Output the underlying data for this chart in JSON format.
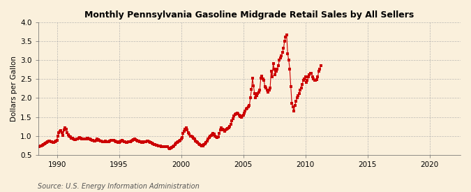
{
  "title": "Monthly Pennsylvania Gasoline Midgrade Retail Sales by All Sellers",
  "ylabel": "Dollars per Gallon",
  "source": "Source: U.S. Energy Information Administration",
  "background_color": "#faf0dc",
  "line_color": "#cc0000",
  "marker_color": "#cc0000",
  "xlim": [
    1988.5,
    2022.5
  ],
  "ylim": [
    0.5,
    4.0
  ],
  "yticks": [
    0.5,
    1.0,
    1.5,
    2.0,
    2.5,
    3.0,
    3.5,
    4.0
  ],
  "ytick_labels": [
    "0.5",
    "1.0",
    "1.5",
    "2.0",
    "2.5",
    "3.0",
    "3.5",
    "4.0"
  ],
  "xticks": [
    1990,
    1995,
    2000,
    2005,
    2010,
    2015,
    2020
  ],
  "data": [
    [
      1988.583,
      0.71
    ],
    [
      1988.667,
      0.73
    ],
    [
      1988.75,
      0.74
    ],
    [
      1988.833,
      0.76
    ],
    [
      1988.917,
      0.78
    ],
    [
      1989.0,
      0.79
    ],
    [
      1989.083,
      0.8
    ],
    [
      1989.167,
      0.82
    ],
    [
      1989.25,
      0.84
    ],
    [
      1989.333,
      0.87
    ],
    [
      1989.417,
      0.87
    ],
    [
      1989.5,
      0.85
    ],
    [
      1989.583,
      0.84
    ],
    [
      1989.667,
      0.83
    ],
    [
      1989.75,
      0.83
    ],
    [
      1989.833,
      0.84
    ],
    [
      1989.917,
      0.86
    ],
    [
      1990.0,
      0.89
    ],
    [
      1990.083,
      1.0
    ],
    [
      1990.167,
      1.08
    ],
    [
      1990.25,
      1.12
    ],
    [
      1990.333,
      1.14
    ],
    [
      1990.417,
      1.08
    ],
    [
      1990.5,
      1.02
    ],
    [
      1990.583,
      1.16
    ],
    [
      1990.667,
      1.22
    ],
    [
      1990.75,
      1.18
    ],
    [
      1990.833,
      1.09
    ],
    [
      1990.917,
      1.03
    ],
    [
      1991.0,
      0.99
    ],
    [
      1991.083,
      0.97
    ],
    [
      1991.167,
      0.94
    ],
    [
      1991.25,
      0.93
    ],
    [
      1991.333,
      0.91
    ],
    [
      1991.417,
      0.9
    ],
    [
      1991.5,
      0.9
    ],
    [
      1991.583,
      0.92
    ],
    [
      1991.667,
      0.92
    ],
    [
      1991.75,
      0.94
    ],
    [
      1991.833,
      0.95
    ],
    [
      1991.917,
      0.93
    ],
    [
      1992.0,
      0.92
    ],
    [
      1992.083,
      0.91
    ],
    [
      1992.167,
      0.91
    ],
    [
      1992.25,
      0.92
    ],
    [
      1992.333,
      0.92
    ],
    [
      1992.417,
      0.93
    ],
    [
      1992.5,
      0.94
    ],
    [
      1992.583,
      0.92
    ],
    [
      1992.667,
      0.91
    ],
    [
      1992.75,
      0.9
    ],
    [
      1992.833,
      0.89
    ],
    [
      1992.917,
      0.88
    ],
    [
      1993.0,
      0.87
    ],
    [
      1993.083,
      0.87
    ],
    [
      1993.167,
      0.89
    ],
    [
      1993.25,
      0.91
    ],
    [
      1993.333,
      0.9
    ],
    [
      1993.417,
      0.88
    ],
    [
      1993.5,
      0.87
    ],
    [
      1993.583,
      0.86
    ],
    [
      1993.667,
      0.85
    ],
    [
      1993.75,
      0.84
    ],
    [
      1993.833,
      0.85
    ],
    [
      1993.917,
      0.86
    ],
    [
      1994.0,
      0.85
    ],
    [
      1994.083,
      0.84
    ],
    [
      1994.167,
      0.85
    ],
    [
      1994.25,
      0.87
    ],
    [
      1994.333,
      0.88
    ],
    [
      1994.417,
      0.89
    ],
    [
      1994.5,
      0.89
    ],
    [
      1994.583,
      0.88
    ],
    [
      1994.667,
      0.87
    ],
    [
      1994.75,
      0.85
    ],
    [
      1994.833,
      0.84
    ],
    [
      1994.917,
      0.83
    ],
    [
      1995.0,
      0.83
    ],
    [
      1995.083,
      0.84
    ],
    [
      1995.167,
      0.86
    ],
    [
      1995.25,
      0.88
    ],
    [
      1995.333,
      0.87
    ],
    [
      1995.417,
      0.85
    ],
    [
      1995.5,
      0.84
    ],
    [
      1995.583,
      0.83
    ],
    [
      1995.667,
      0.83
    ],
    [
      1995.75,
      0.84
    ],
    [
      1995.833,
      0.84
    ],
    [
      1995.917,
      0.85
    ],
    [
      1996.0,
      0.86
    ],
    [
      1996.083,
      0.88
    ],
    [
      1996.167,
      0.9
    ],
    [
      1996.25,
      0.92
    ],
    [
      1996.333,
      0.9
    ],
    [
      1996.417,
      0.88
    ],
    [
      1996.5,
      0.87
    ],
    [
      1996.583,
      0.86
    ],
    [
      1996.667,
      0.85
    ],
    [
      1996.75,
      0.84
    ],
    [
      1996.833,
      0.83
    ],
    [
      1996.917,
      0.83
    ],
    [
      1997.0,
      0.84
    ],
    [
      1997.083,
      0.84
    ],
    [
      1997.167,
      0.85
    ],
    [
      1997.25,
      0.87
    ],
    [
      1997.333,
      0.86
    ],
    [
      1997.417,
      0.84
    ],
    [
      1997.5,
      0.83
    ],
    [
      1997.583,
      0.82
    ],
    [
      1997.667,
      0.8
    ],
    [
      1997.75,
      0.79
    ],
    [
      1997.833,
      0.78
    ],
    [
      1997.917,
      0.77
    ],
    [
      1998.0,
      0.76
    ],
    [
      1998.083,
      0.75
    ],
    [
      1998.167,
      0.74
    ],
    [
      1998.25,
      0.74
    ],
    [
      1998.333,
      0.73
    ],
    [
      1998.417,
      0.72
    ],
    [
      1998.5,
      0.72
    ],
    [
      1998.583,
      0.71
    ],
    [
      1998.667,
      0.71
    ],
    [
      1998.75,
      0.72
    ],
    [
      1998.833,
      0.72
    ],
    [
      1998.917,
      0.71
    ],
    [
      1999.0,
      0.68
    ],
    [
      1999.083,
      0.67
    ],
    [
      1999.167,
      0.68
    ],
    [
      1999.25,
      0.7
    ],
    [
      1999.333,
      0.72
    ],
    [
      1999.417,
      0.74
    ],
    [
      1999.5,
      0.77
    ],
    [
      1999.583,
      0.8
    ],
    [
      1999.667,
      0.82
    ],
    [
      1999.75,
      0.84
    ],
    [
      1999.833,
      0.86
    ],
    [
      1999.917,
      0.88
    ],
    [
      2000.0,
      0.91
    ],
    [
      2000.083,
      0.96
    ],
    [
      2000.167,
      1.06
    ],
    [
      2000.25,
      1.12
    ],
    [
      2000.333,
      1.17
    ],
    [
      2000.417,
      1.21
    ],
    [
      2000.5,
      1.16
    ],
    [
      2000.583,
      1.09
    ],
    [
      2000.667,
      1.04
    ],
    [
      2000.75,
      1.0
    ],
    [
      2000.833,
      1.0
    ],
    [
      2000.917,
      0.97
    ],
    [
      2001.0,
      0.94
    ],
    [
      2001.083,
      0.91
    ],
    [
      2001.167,
      0.87
    ],
    [
      2001.25,
      0.84
    ],
    [
      2001.333,
      0.82
    ],
    [
      2001.417,
      0.79
    ],
    [
      2001.5,
      0.77
    ],
    [
      2001.583,
      0.75
    ],
    [
      2001.667,
      0.74
    ],
    [
      2001.75,
      0.74
    ],
    [
      2001.833,
      0.77
    ],
    [
      2001.917,
      0.79
    ],
    [
      2002.0,
      0.82
    ],
    [
      2002.083,
      0.86
    ],
    [
      2002.167,
      0.91
    ],
    [
      2002.25,
      0.96
    ],
    [
      2002.333,
      0.99
    ],
    [
      2002.417,
      1.01
    ],
    [
      2002.5,
      1.03
    ],
    [
      2002.583,
      1.06
    ],
    [
      2002.667,
      1.05
    ],
    [
      2002.75,
      1.0
    ],
    [
      2002.833,
      0.98
    ],
    [
      2002.917,
      0.95
    ],
    [
      2003.0,
      0.98
    ],
    [
      2003.083,
      1.06
    ],
    [
      2003.167,
      1.16
    ],
    [
      2003.25,
      1.21
    ],
    [
      2003.333,
      1.18
    ],
    [
      2003.417,
      1.15
    ],
    [
      2003.5,
      1.12
    ],
    [
      2003.583,
      1.15
    ],
    [
      2003.667,
      1.18
    ],
    [
      2003.75,
      1.2
    ],
    [
      2003.833,
      1.22
    ],
    [
      2003.917,
      1.25
    ],
    [
      2004.0,
      1.31
    ],
    [
      2004.083,
      1.39
    ],
    [
      2004.167,
      1.46
    ],
    [
      2004.25,
      1.52
    ],
    [
      2004.333,
      1.57
    ],
    [
      2004.417,
      1.59
    ],
    [
      2004.5,
      1.61
    ],
    [
      2004.583,
      1.59
    ],
    [
      2004.667,
      1.55
    ],
    [
      2004.75,
      1.51
    ],
    [
      2004.833,
      1.5
    ],
    [
      2004.917,
      1.52
    ],
    [
      2005.0,
      1.55
    ],
    [
      2005.083,
      1.61
    ],
    [
      2005.167,
      1.66
    ],
    [
      2005.25,
      1.71
    ],
    [
      2005.333,
      1.73
    ],
    [
      2005.417,
      1.76
    ],
    [
      2005.5,
      1.81
    ],
    [
      2005.583,
      2.01
    ],
    [
      2005.667,
      2.22
    ],
    [
      2005.75,
      2.52
    ],
    [
      2005.833,
      2.32
    ],
    [
      2005.917,
      2.11
    ],
    [
      2006.0,
      2.01
    ],
    [
      2006.083,
      2.06
    ],
    [
      2006.167,
      2.12
    ],
    [
      2006.25,
      2.16
    ],
    [
      2006.333,
      2.21
    ],
    [
      2006.417,
      2.52
    ],
    [
      2006.5,
      2.57
    ],
    [
      2006.583,
      2.51
    ],
    [
      2006.667,
      2.46
    ],
    [
      2006.75,
      2.31
    ],
    [
      2006.833,
      2.26
    ],
    [
      2006.917,
      2.21
    ],
    [
      2007.0,
      2.16
    ],
    [
      2007.083,
      2.21
    ],
    [
      2007.167,
      2.26
    ],
    [
      2007.25,
      2.71
    ],
    [
      2007.333,
      2.56
    ],
    [
      2007.417,
      2.91
    ],
    [
      2007.5,
      2.76
    ],
    [
      2007.583,
      2.61
    ],
    [
      2007.667,
      2.71
    ],
    [
      2007.75,
      2.76
    ],
    [
      2007.833,
      2.86
    ],
    [
      2007.917,
      3.01
    ],
    [
      2008.0,
      3.06
    ],
    [
      2008.083,
      3.11
    ],
    [
      2008.167,
      3.21
    ],
    [
      2008.25,
      3.31
    ],
    [
      2008.333,
      3.51
    ],
    [
      2008.417,
      3.61
    ],
    [
      2008.5,
      3.66
    ],
    [
      2008.583,
      3.16
    ],
    [
      2008.667,
      3.01
    ],
    [
      2008.75,
      2.76
    ],
    [
      2008.833,
      2.31
    ],
    [
      2008.917,
      1.86
    ],
    [
      2009.0,
      1.76
    ],
    [
      2009.083,
      1.66
    ],
    [
      2009.167,
      1.81
    ],
    [
      2009.25,
      1.91
    ],
    [
      2009.333,
      2.01
    ],
    [
      2009.417,
      2.06
    ],
    [
      2009.5,
      2.11
    ],
    [
      2009.583,
      2.21
    ],
    [
      2009.667,
      2.26
    ],
    [
      2009.75,
      2.36
    ],
    [
      2009.833,
      2.46
    ],
    [
      2009.917,
      2.51
    ],
    [
      2010.0,
      2.56
    ],
    [
      2010.083,
      2.41
    ],
    [
      2010.167,
      2.46
    ],
    [
      2010.25,
      2.56
    ],
    [
      2010.333,
      2.61
    ],
    [
      2010.417,
      2.66
    ],
    [
      2010.5,
      2.66
    ],
    [
      2010.583,
      2.56
    ],
    [
      2010.667,
      2.51
    ],
    [
      2010.75,
      2.46
    ],
    [
      2010.833,
      2.46
    ],
    [
      2010.917,
      2.49
    ],
    [
      2011.0,
      2.56
    ],
    [
      2011.083,
      2.71
    ],
    [
      2011.167,
      2.76
    ],
    [
      2011.25,
      2.86
    ]
  ]
}
